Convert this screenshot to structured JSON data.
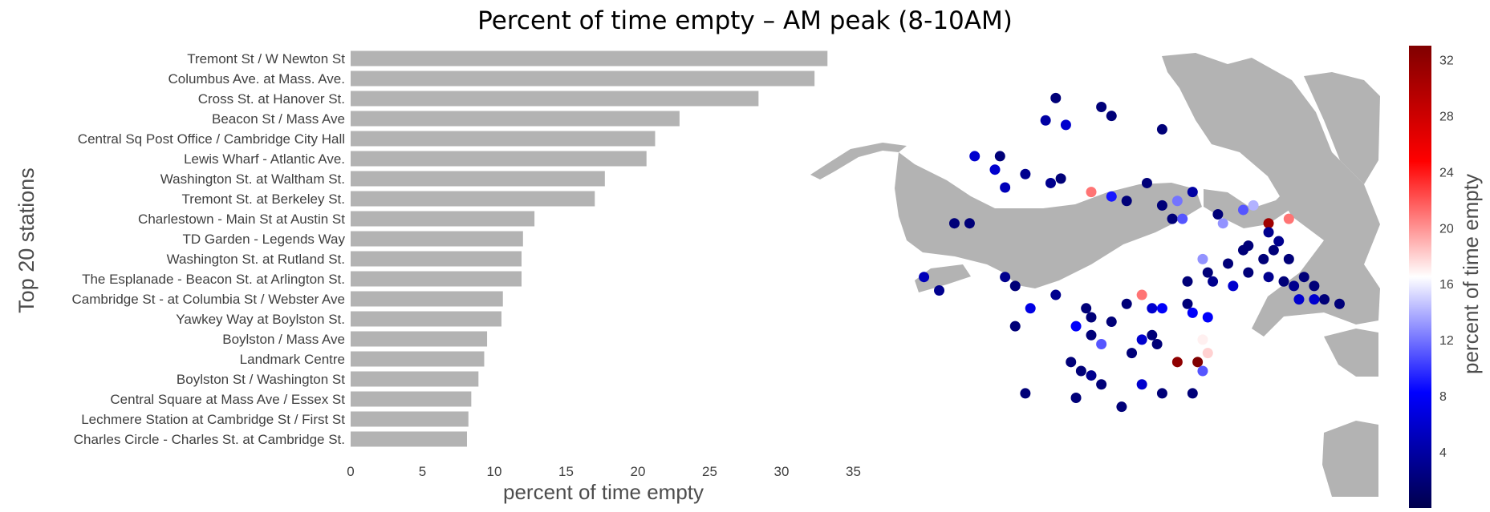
{
  "title": "Percent of time empty – AM peak (8-10AM)",
  "chart_data": [
    {
      "type": "bar",
      "orientation": "horizontal",
      "ylabel": "Top 20 stations",
      "xlabel": "percent of time empty",
      "xlim": [
        0,
        35
      ],
      "xticks": [
        0,
        5,
        10,
        15,
        20,
        25,
        30,
        35
      ],
      "grid": false,
      "bar_color": "#b3b3b3",
      "categories": [
        "Tremont St / W Newton St",
        "Columbus Ave. at Mass. Ave.",
        "Cross St. at Hanover St.",
        "Beacon St / Mass Ave",
        "Central Sq Post Office / Cambridge City Hall",
        "Lewis Wharf - Atlantic Ave.",
        "Washington St. at Waltham St.",
        "Tremont St. at Berkeley St.",
        "Charlestown - Main St at Austin St",
        "TD Garden - Legends Way",
        "Washington St. at Rutland St.",
        "The Esplanade - Beacon St. at Arlington St.",
        "Cambridge St - at Columbia St / Webster Ave",
        "Yawkey Way at Boylston St.",
        "Boylston / Mass Ave",
        "Landmark Centre",
        "Boylston St / Washington St",
        "Central Square at Mass Ave / Essex St",
        "Lechmere Station at Cambridge St / First St",
        "Charles Circle - Charles St. at Cambridge St."
      ],
      "values": [
        33.2,
        32.3,
        28.4,
        22.9,
        21.2,
        20.6,
        17.7,
        17.0,
        12.8,
        12.0,
        11.9,
        11.9,
        10.6,
        10.5,
        9.5,
        9.3,
        8.9,
        8.4,
        8.2,
        8.1
      ]
    },
    {
      "type": "scatter",
      "description": "station map colored by percent of time empty",
      "colorbar_label": "percent of time empty",
      "colorbar_ticks": [
        4,
        8,
        12,
        16,
        20,
        24,
        28,
        32
      ],
      "colorbar_range": [
        0,
        33
      ],
      "colormap": [
        "#00004d",
        "#0000ff",
        "#ffffff",
        "#ff0000",
        "#800000"
      ],
      "land_color": "#b3b3b3",
      "stations": [
        {
          "lon": -71.089,
          "lat": 42.368,
          "value": 2
        },
        {
          "lon": -71.08,
          "lat": 42.366,
          "value": 2
        },
        {
          "lon": -71.091,
          "lat": 42.363,
          "value": 4
        },
        {
          "lon": -71.087,
          "lat": 42.362,
          "value": 6
        },
        {
          "lon": -71.078,
          "lat": 42.364,
          "value": 2
        },
        {
          "lon": -71.068,
          "lat": 42.361,
          "value": 2
        },
        {
          "lon": -71.1,
          "lat": 42.355,
          "value": 2
        },
        {
          "lon": -71.105,
          "lat": 42.355,
          "value": 6
        },
        {
          "lon": -71.101,
          "lat": 42.352,
          "value": 6
        },
        {
          "lon": -71.095,
          "lat": 42.351,
          "value": 3
        },
        {
          "lon": -71.099,
          "lat": 42.348,
          "value": 5
        },
        {
          "lon": -71.088,
          "lat": 42.35,
          "value": 2
        },
        {
          "lon": -71.09,
          "lat": 42.349,
          "value": 3
        },
        {
          "lon": -71.078,
          "lat": 42.346,
          "value": 9
        },
        {
          "lon": -71.075,
          "lat": 42.345,
          "value": 2
        },
        {
          "lon": -71.065,
          "lat": 42.345,
          "value": 12
        },
        {
          "lon": -71.068,
          "lat": 42.344,
          "value": 2
        },
        {
          "lon": -71.066,
          "lat": 42.341,
          "value": 2
        },
        {
          "lon": -71.057,
          "lat": 42.342,
          "value": 2
        },
        {
          "lon": -71.056,
          "lat": 42.34,
          "value": 13
        },
        {
          "lon": -71.047,
          "lat": 42.34,
          "value": 31
        },
        {
          "lon": -71.043,
          "lat": 42.341,
          "value": 21
        },
        {
          "lon": -71.05,
          "lat": 42.344,
          "value": 14
        },
        {
          "lon": -71.082,
          "lat": 42.347,
          "value": 21
        },
        {
          "lon": -71.071,
          "lat": 42.349,
          "value": 2
        },
        {
          "lon": -71.062,
          "lat": 42.347,
          "value": 4
        },
        {
          "lon": -71.052,
          "lat": 42.343,
          "value": 11
        },
        {
          "lon": -71.064,
          "lat": 42.341,
          "value": 11
        },
        {
          "lon": -71.047,
          "lat": 42.338,
          "value": 3
        },
        {
          "lon": -71.045,
          "lat": 42.336,
          "value": 3
        },
        {
          "lon": -71.051,
          "lat": 42.335,
          "value": 2
        },
        {
          "lon": -71.046,
          "lat": 42.334,
          "value": 2
        },
        {
          "lon": -71.06,
          "lat": 42.332,
          "value": 13
        },
        {
          "lon": -71.055,
          "lat": 42.331,
          "value": 2
        },
        {
          "lon": -71.048,
          "lat": 42.332,
          "value": 2
        },
        {
          "lon": -71.043,
          "lat": 42.332,
          "value": 2
        },
        {
          "lon": -71.059,
          "lat": 42.329,
          "value": 2
        },
        {
          "lon": -71.051,
          "lat": 42.329,
          "value": 2
        },
        {
          "lon": -71.047,
          "lat": 42.328,
          "value": 3
        },
        {
          "lon": -71.044,
          "lat": 42.327,
          "value": 2
        },
        {
          "lon": -71.063,
          "lat": 42.327,
          "value": 2
        },
        {
          "lon": -71.058,
          "lat": 42.327,
          "value": 3
        },
        {
          "lon": -71.054,
          "lat": 42.326,
          "value": 6
        },
        {
          "lon": -71.04,
          "lat": 42.328,
          "value": 2
        },
        {
          "lon": -71.042,
          "lat": 42.326,
          "value": 3
        },
        {
          "lon": -71.038,
          "lat": 42.326,
          "value": 2
        },
        {
          "lon": -71.072,
          "lat": 42.324,
          "value": 21
        },
        {
          "lon": -71.075,
          "lat": 42.322,
          "value": 2
        },
        {
          "lon": -71.07,
          "lat": 42.321,
          "value": 6
        },
        {
          "lon": -71.068,
          "lat": 42.321,
          "value": 8
        },
        {
          "lon": -71.063,
          "lat": 42.322,
          "value": 2
        },
        {
          "lon": -71.062,
          "lat": 42.32,
          "value": 8
        },
        {
          "lon": -71.059,
          "lat": 42.319,
          "value": 8
        },
        {
          "lon": -71.089,
          "lat": 42.324,
          "value": 3
        },
        {
          "lon": -71.094,
          "lat": 42.321,
          "value": 7
        },
        {
          "lon": -71.097,
          "lat": 42.317,
          "value": 2
        },
        {
          "lon": -71.083,
          "lat": 42.321,
          "value": 2
        },
        {
          "lon": -71.082,
          "lat": 42.319,
          "value": 2
        },
        {
          "lon": -71.078,
          "lat": 42.318,
          "value": 2
        },
        {
          "lon": -71.085,
          "lat": 42.317,
          "value": 8
        },
        {
          "lon": -71.082,
          "lat": 42.315,
          "value": 2
        },
        {
          "lon": -71.08,
          "lat": 42.313,
          "value": 11
        },
        {
          "lon": -71.072,
          "lat": 42.314,
          "value": 6
        },
        {
          "lon": -71.07,
          "lat": 42.315,
          "value": 2
        },
        {
          "lon": -71.069,
          "lat": 42.313,
          "value": 2
        },
        {
          "lon": -71.074,
          "lat": 42.311,
          "value": 2
        },
        {
          "lon": -71.06,
          "lat": 42.314,
          "value": 17
        },
        {
          "lon": -71.059,
          "lat": 42.311,
          "value": 18
        },
        {
          "lon": -71.065,
          "lat": 42.309,
          "value": 32
        },
        {
          "lon": -71.061,
          "lat": 42.309,
          "value": 33
        },
        {
          "lon": -71.06,
          "lat": 42.307,
          "value": 11
        },
        {
          "lon": -71.086,
          "lat": 42.309,
          "value": 2
        },
        {
          "lon": -71.084,
          "lat": 42.307,
          "value": 2
        },
        {
          "lon": -71.082,
          "lat": 42.306,
          "value": 3
        },
        {
          "lon": -71.08,
          "lat": 42.304,
          "value": 2
        },
        {
          "lon": -71.072,
          "lat": 42.304,
          "value": 6
        },
        {
          "lon": -71.068,
          "lat": 42.302,
          "value": 2
        },
        {
          "lon": -71.062,
          "lat": 42.302,
          "value": 2
        },
        {
          "lon": -71.095,
          "lat": 42.302,
          "value": 2
        },
        {
          "lon": -71.085,
          "lat": 42.301,
          "value": 2
        },
        {
          "lon": -71.076,
          "lat": 42.299,
          "value": 2
        },
        {
          "lon": -71.109,
          "lat": 42.34,
          "value": 2
        },
        {
          "lon": -71.106,
          "lat": 42.34,
          "value": 2
        },
        {
          "lon": -71.115,
          "lat": 42.328,
          "value": 5
        },
        {
          "lon": -71.112,
          "lat": 42.325,
          "value": 3
        },
        {
          "lon": -71.099,
          "lat": 42.328,
          "value": 3
        },
        {
          "lon": -71.097,
          "lat": 42.326,
          "value": 2
        },
        {
          "lon": -71.036,
          "lat": 42.323,
          "value": 2
        },
        {
          "lon": -71.038,
          "lat": 42.323,
          "value": 6
        },
        {
          "lon": -71.033,
          "lat": 42.322,
          "value": 2
        },
        {
          "lon": -71.041,
          "lat": 42.323,
          "value": 6
        },
        {
          "lon": -71.052,
          "lat": 42.334,
          "value": 2
        }
      ]
    }
  ]
}
